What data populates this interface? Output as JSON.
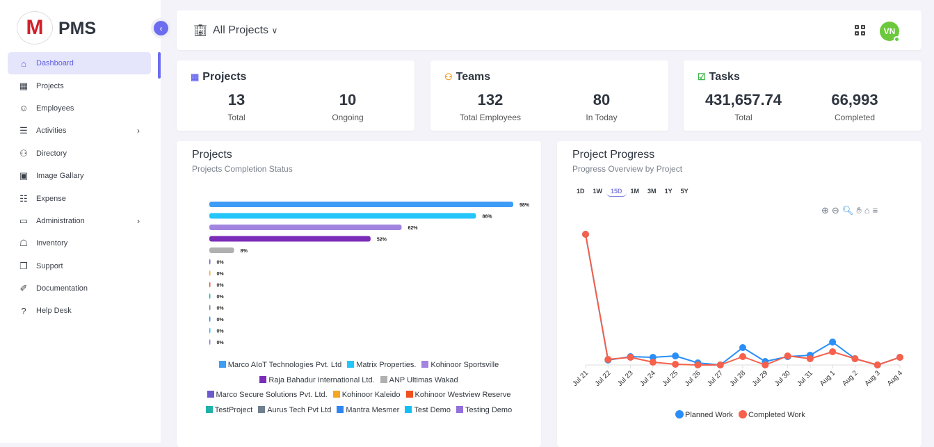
{
  "sidebar": {
    "brand": "PMS",
    "logo_letter": "M",
    "items": [
      {
        "label": "Dashboard",
        "icon": "home-icon",
        "active": true
      },
      {
        "label": "Projects",
        "icon": "building-icon"
      },
      {
        "label": "Employees",
        "icon": "user-icon"
      },
      {
        "label": "Activities",
        "icon": "list-icon",
        "chevron": true
      },
      {
        "label": "Directory",
        "icon": "users-icon"
      },
      {
        "label": "Image Gallary",
        "icon": "image-icon"
      },
      {
        "label": "Expense",
        "icon": "receipt-icon"
      },
      {
        "label": "Administration",
        "icon": "archive-icon",
        "chevron": true
      },
      {
        "label": "Inventory",
        "icon": "store-icon"
      },
      {
        "label": "Support",
        "icon": "copy-icon"
      },
      {
        "label": "Documentation",
        "icon": "book-icon"
      },
      {
        "label": "Help Desk",
        "icon": "question-icon"
      }
    ]
  },
  "header": {
    "title": "All Projects",
    "avatar": "VN"
  },
  "stats": [
    {
      "title": "Projects",
      "icon_color": "#6c6cf0",
      "values": [
        {
          "value": "13",
          "label": "Total"
        },
        {
          "value": "10",
          "label": "Ongoing"
        }
      ]
    },
    {
      "title": "Teams",
      "icon_color": "#f0a020",
      "values": [
        {
          "value": "132",
          "label": "Total Employees"
        },
        {
          "value": "80",
          "label": "In Today"
        }
      ]
    },
    {
      "title": "Tasks",
      "icon_color": "#3cb44a",
      "values": [
        {
          "value": "431,657.74",
          "label": "Total"
        },
        {
          "value": "66,993",
          "label": "Completed"
        }
      ]
    }
  ],
  "projects_chart": {
    "title": "Projects",
    "subtitle": "Projects Completion Status"
  },
  "progress_chart": {
    "title": "Project Progress",
    "subtitle": "Progress Overview by Project",
    "ranges": [
      "1D",
      "1W",
      "15D",
      "1M",
      "3M",
      "1Y",
      "5Y"
    ],
    "active_range": "15D"
  },
  "chart_data": [
    {
      "type": "bar",
      "orientation": "horizontal",
      "unit": "%",
      "categories": [
        "Marco AIoT Technologies Pvt. Ltd",
        "Matrix Properties.",
        "Kohinoor Sportsville",
        "Raja Bahadur International Ltd.",
        "ANP Ultimas Wakad",
        "Marco Secure Solutions Pvt. Ltd.",
        "Kohinoor Kaleido",
        "Kohinoor Westview Reserve",
        "TestProject",
        "Aurus Tech Pvt Ltd",
        "Mantra Mesmer",
        "Test Demo",
        "Testing Demo"
      ],
      "values": [
        98,
        86,
        62,
        52,
        8,
        0,
        0,
        0,
        0,
        0,
        0,
        0,
        0
      ],
      "data_labels": [
        "98%",
        "86%",
        "62%",
        "52%",
        "8%",
        "0%",
        "0%",
        "0%",
        "0%",
        "0%",
        "0%",
        "0%",
        "0%"
      ],
      "colors": [
        "#3d9cf5",
        "#24c6fa",
        "#a284e0",
        "#7b2cb8",
        "#b0b0b0",
        "#6a5acd",
        "#f5a623",
        "#f0501e",
        "#20b2aa",
        "#708090",
        "#2f86f0",
        "#12bff5",
        "#9370db"
      ],
      "legend": "bottom"
    },
    {
      "type": "line",
      "x": [
        "Jul 21",
        "Jul 22",
        "Jul 23",
        "Jul 24",
        "Jul 25",
        "Jul 26",
        "Jul 27",
        "Jul 28",
        "Jul 29",
        "Jul 30",
        "Jul 31",
        "Aug 1",
        "Aug 2",
        "Aug 3",
        "Aug 4"
      ],
      "series": [
        {
          "name": "Planned Work",
          "color": "#2a8ef7",
          "values": [
            188,
            7,
            12,
            11,
            13,
            3,
            0,
            25,
            5,
            12,
            14,
            33,
            9,
            0,
            11
          ]
        },
        {
          "name": "Completed Work",
          "color": "#f7604a",
          "values": [
            188,
            8,
            11,
            4,
            1,
            0,
            0,
            12,
            0,
            13,
            9,
            19,
            9,
            0,
            11
          ]
        }
      ],
      "legend": "bottom",
      "grid": false
    }
  ]
}
